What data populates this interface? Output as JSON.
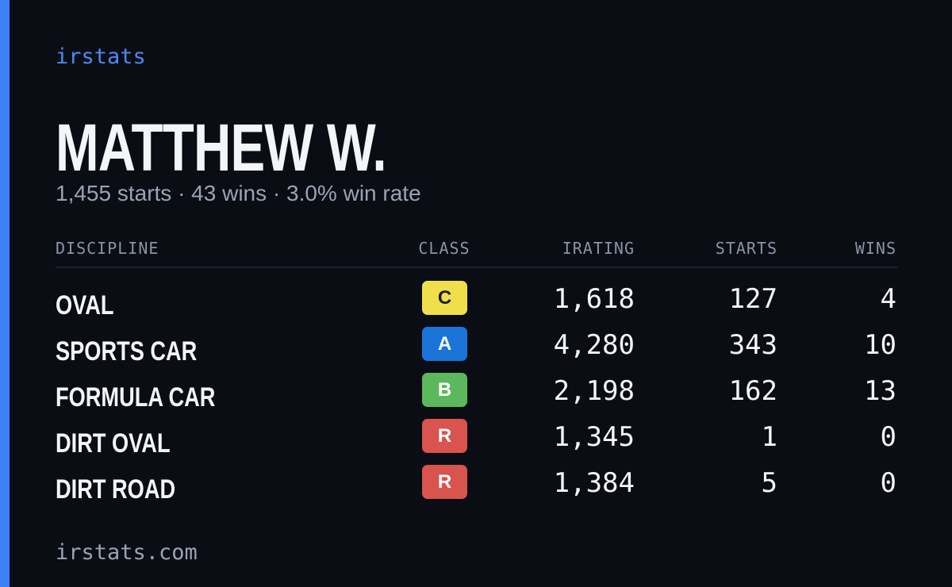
{
  "header": {
    "brand": "irstats",
    "name": "MATTHEW W.",
    "summary": "1,455 starts · 43 wins · 3.0% win rate"
  },
  "table": {
    "columns": [
      "DISCIPLINE",
      "CLASS",
      "IRATING",
      "STARTS",
      "WINS"
    ],
    "rows": [
      [
        "OVAL",
        "C",
        "1,618",
        "127",
        "4"
      ],
      [
        "SPORTS CAR",
        "A",
        "4,280",
        "343",
        "10"
      ],
      [
        "FORMULA CAR",
        "B",
        "2,198",
        "162",
        "13"
      ],
      [
        "DIRT OVAL",
        "R",
        "1,345",
        "1",
        "0"
      ],
      [
        "DIRT ROAD",
        "R",
        "1,384",
        "5",
        "0"
      ]
    ],
    "class_colors": [
      "#efe04b",
      "#1b74d8",
      "#5cb85c",
      "#d9534f",
      "#d9534f"
    ]
  },
  "footer": {
    "url": "irstats.com"
  }
}
